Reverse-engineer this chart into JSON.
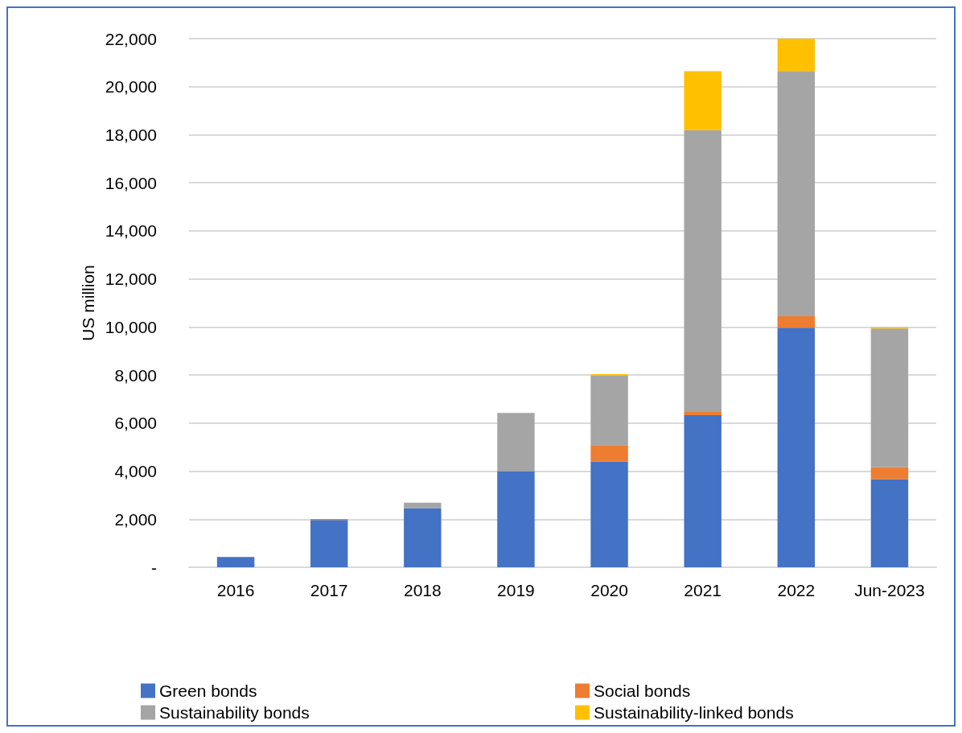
{
  "chart_data": {
    "type": "bar",
    "stacked": true,
    "ylabel": "US million",
    "categories": [
      "2016",
      "2017",
      "2018",
      "2019",
      "2020",
      "2021",
      "2022",
      "Jun-2023"
    ],
    "series": [
      {
        "name": "Green bonds",
        "color": "#4472c4",
        "values": [
          430,
          1970,
          2460,
          4000,
          4400,
          6330,
          9970,
          3670
        ]
      },
      {
        "name": "Social bonds",
        "color": "#ed7d31",
        "values": [
          0,
          40,
          0,
          0,
          680,
          130,
          480,
          500
        ]
      },
      {
        "name": "Sustainability bonds",
        "color": "#a5a5a5",
        "values": [
          0,
          0,
          230,
          2420,
          2890,
          11730,
          10200,
          5770
        ]
      },
      {
        "name": "Sustainability-linked bonds",
        "color": "#ffc000",
        "values": [
          0,
          0,
          0,
          0,
          70,
          2450,
          1350,
          50
        ]
      }
    ],
    "ylim": [
      0,
      22000
    ],
    "yticks": [
      {
        "value": 0,
        "label": "-"
      },
      {
        "value": 2000,
        "label": "2,000"
      },
      {
        "value": 4000,
        "label": "4,000"
      },
      {
        "value": 6000,
        "label": "6,000"
      },
      {
        "value": 8000,
        "label": "8,000"
      },
      {
        "value": 10000,
        "label": "10,000"
      },
      {
        "value": 12000,
        "label": "12,000"
      },
      {
        "value": 14000,
        "label": "14,000"
      },
      {
        "value": 16000,
        "label": "16,000"
      },
      {
        "value": 18000,
        "label": "18,000"
      },
      {
        "value": 20000,
        "label": "20,000"
      },
      {
        "value": 22000,
        "label": "22,000"
      }
    ],
    "grid": "y",
    "legend": "bottom"
  }
}
